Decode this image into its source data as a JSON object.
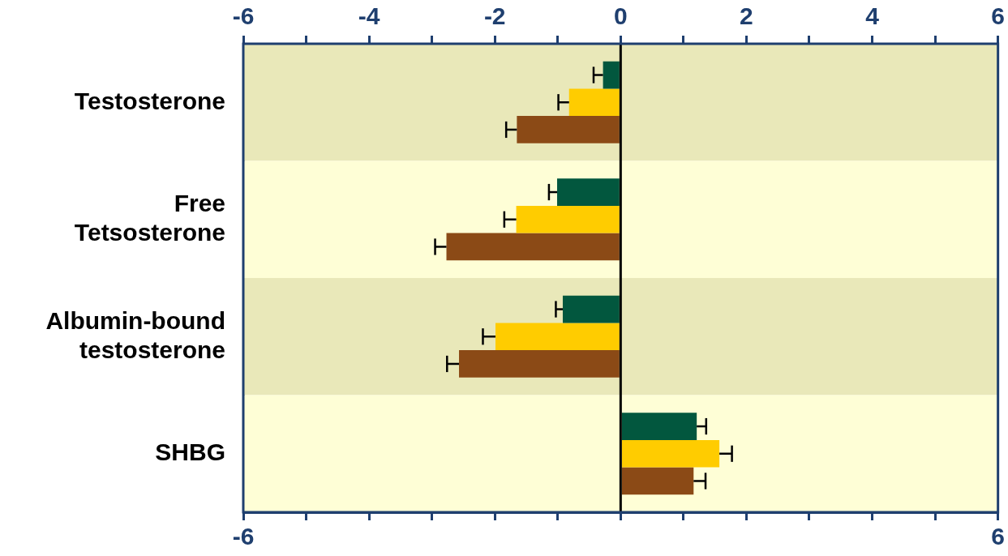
{
  "chart_data": {
    "type": "bar",
    "orientation": "horizontal",
    "categories": [
      "Testosterone",
      "Free Tetsosterone",
      "Albumin-bound testosterone",
      "SHBG"
    ],
    "series": [
      {
        "color": "#02573e",
        "values": [
          -0.28,
          -1.01,
          -0.92,
          1.21
        ],
        "errors": [
          [
            -0.43,
            -0.28
          ],
          [
            -1.14,
            -1.01
          ],
          [
            -1.03,
            -0.92
          ],
          [
            1.21,
            1.36
          ]
        ]
      },
      {
        "color": "#ffcc00",
        "values": [
          -0.82,
          -1.66,
          -1.99,
          1.57
        ],
        "errors": [
          [
            -0.99,
            -0.82
          ],
          [
            -1.85,
            -1.66
          ],
          [
            -2.19,
            -1.99
          ],
          [
            1.57,
            1.77
          ]
        ]
      },
      {
        "color": "#8b4a16",
        "values": [
          -1.65,
          -2.77,
          -2.57,
          1.16
        ],
        "errors": [
          [
            -1.82,
            -1.65
          ],
          [
            -2.95,
            -2.77
          ],
          [
            -2.76,
            -2.57
          ],
          [
            1.16,
            1.35
          ]
        ]
      }
    ],
    "xlim": [
      -6,
      6
    ],
    "xticks": [
      -6,
      {
        "value": -5,
        "label": null
      },
      {
        "value": -4,
        "label": null
      },
      {
        "value": -3,
        "label": null
      },
      {
        "value": -2,
        "label": null
      },
      {
        "value": -1,
        "label": null
      },
      {
        "value": 0,
        "label": null
      },
      {
        "value": 1,
        "label": null
      },
      {
        "value": 2,
        "label": null
      },
      {
        "value": 3,
        "label": null
      },
      {
        "value": 4,
        "label": null
      },
      {
        "value": 5,
        "label": null
      },
      6
    ],
    "x2lim": [
      -6,
      6
    ],
    "x2ticks": [
      -6,
      {
        "value": -5,
        "label": null
      },
      -4,
      {
        "value": -3,
        "label": null
      },
      -2,
      {
        "value": -1,
        "label": null
      },
      0,
      {
        "value": 1,
        "label": null
      },
      2,
      {
        "value": 3,
        "label": null
      },
      4,
      {
        "value": 5,
        "label": null
      },
      6
    ],
    "ref_lines": [
      {
        "axis": "x",
        "value": 0,
        "color": "#000000"
      }
    ],
    "bands": [
      {
        "axis": "y",
        "from": "Testosterone",
        "to": "Testosterone",
        "color": "#e9e8b9"
      },
      {
        "axis": "y",
        "from": "Free Tetsosterone",
        "to": "Free Tetsosterone",
        "color": "#fefed6"
      },
      {
        "axis": "y",
        "from": "Albumin-bound testosterone",
        "to": "Albumin-bound testosterone",
        "color": "#e9e8b9"
      },
      {
        "axis": "y",
        "from": "SHBG",
        "to": "SHBG",
        "color": "#fefed6"
      }
    ],
    "grid": false,
    "legend": false
  }
}
